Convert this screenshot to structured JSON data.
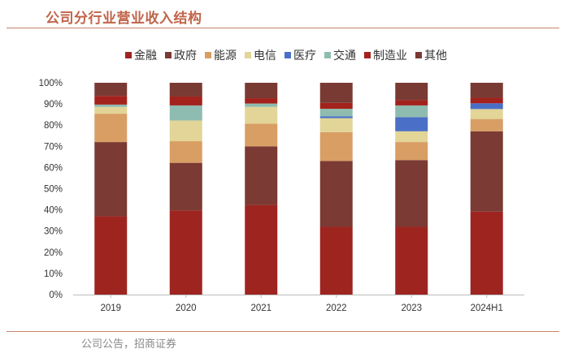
{
  "title": "公司分行业营业收入结构",
  "source": "公司公告，招商证券",
  "chart_data": {
    "type": "bar",
    "stacked": true,
    "categories": [
      "2019",
      "2020",
      "2021",
      "2022",
      "2023",
      "2024H1"
    ],
    "ylim": [
      0,
      100
    ],
    "yticks": [
      "0%",
      "10%",
      "20%",
      "30%",
      "40%",
      "50%",
      "60%",
      "70%",
      "80%",
      "90%",
      "100%"
    ],
    "legend_position": "top",
    "grid": false,
    "series": [
      {
        "name": "金融",
        "color": "#9e2420",
        "values": [
          37.0,
          39.7,
          42.3,
          32.0,
          32.0,
          39.2
        ]
      },
      {
        "name": "政府",
        "color": "#7b3a33",
        "values": [
          35.0,
          22.5,
          27.7,
          31.1,
          31.5,
          37.9
        ]
      },
      {
        "name": "能源",
        "color": "#d99e64",
        "values": [
          13.4,
          10.2,
          10.7,
          13.6,
          8.5,
          5.8
        ]
      },
      {
        "name": "电信",
        "color": "#e2d597",
        "values": [
          3.2,
          9.8,
          7.9,
          6.6,
          5.1,
          4.7
        ]
      },
      {
        "name": "医疗",
        "color": "#4a6fc6",
        "values": [
          0.0,
          0.0,
          0.0,
          0.9,
          6.7,
          2.7
        ]
      },
      {
        "name": "交通",
        "color": "#8fbcb0",
        "values": [
          1.1,
          7.1,
          1.6,
          3.5,
          5.5,
          0.0
        ]
      },
      {
        "name": "制造业",
        "color": "#a3221c",
        "values": [
          4.1,
          4.2,
          2.5,
          2.8,
          2.5,
          2.6
        ]
      },
      {
        "name": "其他",
        "color": "#7a3a34",
        "values": [
          6.2,
          6.5,
          7.3,
          9.5,
          8.2,
          7.1
        ]
      }
    ]
  }
}
